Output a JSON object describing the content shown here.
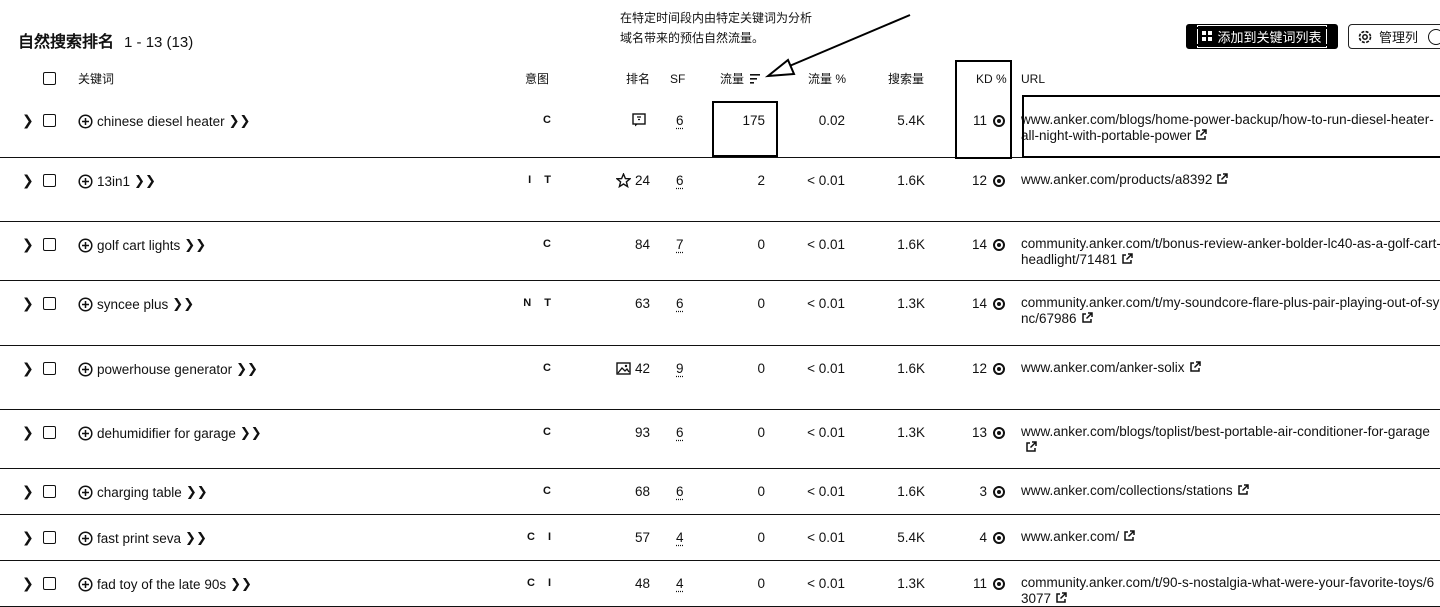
{
  "header": {
    "title": "自然搜索排名",
    "count": "1 - 13 (13)",
    "annotation_line1": "在特定时间段内由特定关键词为分析",
    "annotation_line2": "域名带来的预估自然流量。",
    "add_button": "添加到关键词列表",
    "columns_button": "管理列"
  },
  "columns": {
    "keyword": "关键词",
    "intent": "意图",
    "position": "排名",
    "sf": "SF",
    "traffic": "流量",
    "traffic_pct": "流量 %",
    "volume": "搜索量",
    "kd": "KD %",
    "url": "URL"
  },
  "rows": [
    {
      "keyword": "chinese diesel heater",
      "intent": "C",
      "position": "",
      "sf": "6",
      "traffic": "175",
      "traffic_pct": "0.02",
      "volume": "5.4K",
      "kd": "11",
      "url": "www.anker.com/blogs/home-power-backup/how-to-run-diesel-heater-all-night-with-portable-power",
      "feature_icon": "chat-icon"
    },
    {
      "keyword": "13in1",
      "intent": "I T",
      "position": "24",
      "sf": "6",
      "traffic": "2",
      "traffic_pct": "< 0.01",
      "volume": "1.6K",
      "kd": "12",
      "url": "www.anker.com/products/a8392",
      "feature_icon": "star-icon"
    },
    {
      "keyword": "golf cart lights",
      "intent": "C",
      "position": "84",
      "sf": "7",
      "traffic": "0",
      "traffic_pct": "< 0.01",
      "volume": "1.6K",
      "kd": "14",
      "url": "community.anker.com/t/bonus-review-anker-bolder-lc40-as-a-golf-cart-headlight/71481",
      "feature_icon": ""
    },
    {
      "keyword": "syncee plus",
      "intent": "N T",
      "position": "63",
      "sf": "6",
      "traffic": "0",
      "traffic_pct": "< 0.01",
      "volume": "1.3K",
      "kd": "14",
      "url": "community.anker.com/t/my-soundcore-flare-plus-pair-playing-out-of-sync/67986",
      "feature_icon": ""
    },
    {
      "keyword": "powerhouse generator",
      "intent": "C",
      "position": "42",
      "sf": "9",
      "traffic": "0",
      "traffic_pct": "< 0.01",
      "volume": "1.6K",
      "kd": "12",
      "url": "www.anker.com/anker-solix",
      "feature_icon": "image-icon"
    },
    {
      "keyword": "dehumidifier for garage",
      "intent": "C",
      "position": "93",
      "sf": "6",
      "traffic": "0",
      "traffic_pct": "< 0.01",
      "volume": "1.3K",
      "kd": "13",
      "url": "www.anker.com/blogs/toplist/best-portable-air-conditioner-for-garage",
      "feature_icon": ""
    },
    {
      "keyword": "charging table",
      "intent": "C",
      "position": "68",
      "sf": "6",
      "traffic": "0",
      "traffic_pct": "< 0.01",
      "volume": "1.6K",
      "kd": "3",
      "url": "www.anker.com/collections/stations",
      "feature_icon": ""
    },
    {
      "keyword": "fast print seva",
      "intent": "C I",
      "position": "57",
      "sf": "4",
      "traffic": "0",
      "traffic_pct": "< 0.01",
      "volume": "5.4K",
      "kd": "4",
      "url": "www.anker.com/",
      "feature_icon": ""
    },
    {
      "keyword": "fad toy of the late 90s",
      "intent": "C I",
      "position": "48",
      "sf": "4",
      "traffic": "0",
      "traffic_pct": "< 0.01",
      "volume": "1.3K",
      "kd": "11",
      "url": "community.anker.com/t/90-s-nostalgia-what-were-your-favorite-toys/63077",
      "feature_icon": ""
    }
  ]
}
